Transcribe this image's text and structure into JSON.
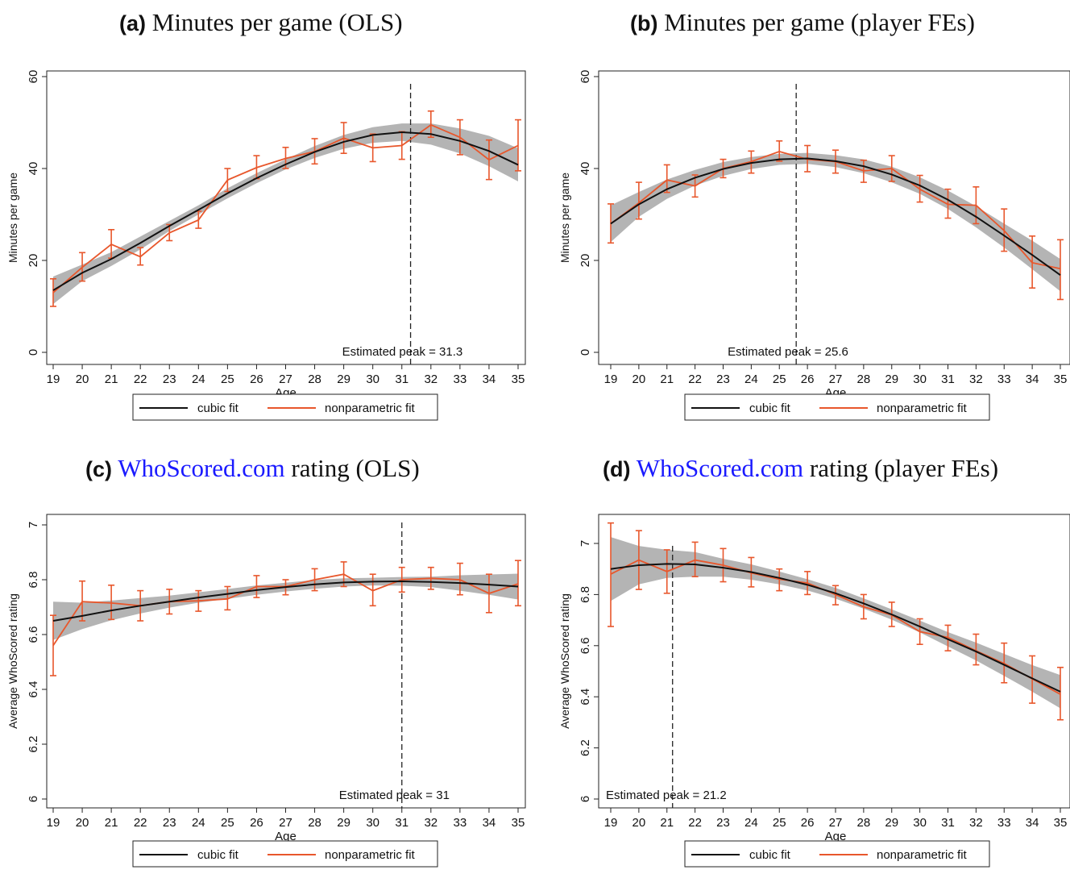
{
  "chart_data": [
    {
      "type": "line",
      "panel_letter": "(a)",
      "title_rest": "Minutes per game (OLS)",
      "title_link": "",
      "xlabel": "Age",
      "ylabel": "Minutes per game",
      "x": [
        19,
        20,
        21,
        22,
        23,
        24,
        25,
        26,
        27,
        28,
        29,
        30,
        31,
        32,
        33,
        34,
        35
      ],
      "xlim": [
        19,
        35
      ],
      "ylim": [
        0,
        60
      ],
      "yticks": [
        0,
        20,
        40,
        60
      ],
      "peak": 31.3,
      "peak_label": "Estimated peak = 31.3",
      "series": [
        {
          "name": "cubic fit",
          "values": [
            13.5,
            17.3,
            20.3,
            23.8,
            27.5,
            31,
            34.6,
            37.9,
            40.9,
            43.6,
            45.8,
            47.3,
            47.9,
            47.5,
            46,
            43.8,
            40.8
          ],
          "band_lower": [
            10.5,
            15.5,
            18.8,
            22.4,
            26.4,
            30,
            33.5,
            36.8,
            39.8,
            42.3,
            44.3,
            45.6,
            46,
            45.2,
            43.3,
            40.5,
            37.2
          ],
          "band_upper": [
            16.5,
            19.1,
            21.8,
            25.2,
            28.6,
            32,
            35.7,
            39,
            42,
            44.9,
            47.3,
            49,
            49.8,
            49.8,
            48.7,
            47.1,
            44.4
          ]
        },
        {
          "name": "nonparametric fit",
          "values": [
            13,
            18.5,
            23.5,
            20.8,
            26,
            28.8,
            37.5,
            40.2,
            42.2,
            43.7,
            46.6,
            44.5,
            45,
            49.5,
            46.8,
            41.9,
            45
          ],
          "ci_lower": [
            10,
            15.5,
            20.5,
            19,
            24.3,
            27,
            35,
            37.8,
            40,
            41,
            43.3,
            41.5,
            42,
            46.8,
            43,
            37.6,
            39.5
          ],
          "ci_upper": [
            16,
            21.7,
            26.7,
            22.8,
            27.8,
            30.7,
            40,
            42.8,
            44.6,
            46.5,
            50,
            47.5,
            48,
            52.5,
            50.6,
            46.2,
            50.6
          ]
        }
      ],
      "legend": [
        "cubic fit",
        "nonparametric fit"
      ]
    },
    {
      "type": "line",
      "panel_letter": "(b)",
      "title_rest": "Minutes per game (player FEs)",
      "title_link": "",
      "xlabel": "Age",
      "ylabel": "Minutes per game",
      "x": [
        19,
        20,
        21,
        22,
        23,
        24,
        25,
        26,
        27,
        28,
        29,
        30,
        31,
        32,
        33,
        34,
        35
      ],
      "xlim": [
        19,
        35
      ],
      "ylim": [
        0,
        60
      ],
      "yticks": [
        0,
        20,
        40,
        60
      ],
      "peak": 25.6,
      "peak_label": "Estimated peak = 25.6",
      "series": [
        {
          "name": "cubic fit",
          "values": [
            28,
            32.2,
            35.5,
            38,
            39.9,
            41.2,
            42,
            42.2,
            41.6,
            40.5,
            38.7,
            36.3,
            33.2,
            29.5,
            25.4,
            21.2,
            16.8
          ],
          "band_lower": [
            24,
            29.5,
            33.4,
            36.3,
            38.4,
            39.9,
            40.8,
            41,
            40.3,
            39,
            37,
            34.5,
            31.2,
            27.2,
            22.8,
            18.1,
            13.3
          ],
          "band_upper": [
            32,
            34.9,
            37.6,
            39.7,
            41.4,
            42.5,
            43.2,
            43.4,
            42.9,
            42,
            40.4,
            38.1,
            35.2,
            31.8,
            28,
            24.3,
            20.3
          ]
        },
        {
          "name": "nonparametric fit",
          "values": [
            28,
            32.5,
            37.5,
            36.2,
            40,
            41.5,
            43.7,
            42,
            41.5,
            39.5,
            40,
            35.5,
            32.2,
            32,
            26.5,
            19.5,
            18.2
          ],
          "ci_lower": [
            23.8,
            29,
            34.8,
            33.8,
            38,
            39,
            41.6,
            39.3,
            39,
            37,
            37.2,
            32.7,
            29.2,
            28,
            22,
            14,
            11.5
          ],
          "ci_upper": [
            32.3,
            37,
            40.8,
            38.6,
            42,
            43.8,
            46,
            45,
            44,
            41.8,
            42.8,
            38.5,
            35.5,
            36,
            31.2,
            25.3,
            24.5
          ]
        }
      ],
      "legend": [
        "cubic fit",
        "nonparametric fit"
      ]
    },
    {
      "type": "line",
      "panel_letter": "(c)",
      "title_rest": "rating (OLS)",
      "title_link": "WhoScored.com",
      "xlabel": "Age",
      "ylabel": "Average WhoScored rating",
      "x": [
        19,
        20,
        21,
        22,
        23,
        24,
        25,
        26,
        27,
        28,
        29,
        30,
        31,
        32,
        33,
        34,
        35
      ],
      "xlim": [
        19,
        35
      ],
      "ylim": [
        6,
        7
      ],
      "yticks": [
        6,
        6.2,
        6.4,
        6.6,
        6.8,
        7
      ],
      "peak": 31,
      "peak_label": "Estimated peak = 31",
      "series": [
        {
          "name": "cubic fit",
          "values": [
            6.65,
            6.668,
            6.688,
            6.705,
            6.72,
            6.735,
            6.748,
            6.762,
            6.773,
            6.783,
            6.79,
            6.793,
            6.794,
            6.792,
            6.788,
            6.782,
            6.775
          ],
          "band_lower": [
            6.58,
            6.62,
            6.652,
            6.677,
            6.698,
            6.716,
            6.73,
            6.745,
            6.757,
            6.767,
            6.775,
            6.779,
            6.778,
            6.773,
            6.76,
            6.745,
            6.728
          ],
          "band_upper": [
            6.72,
            6.716,
            6.724,
            6.733,
            6.742,
            6.754,
            6.766,
            6.779,
            6.789,
            6.799,
            6.805,
            6.807,
            6.81,
            6.811,
            6.816,
            6.819,
            6.822
          ]
        },
        {
          "name": "nonparametric fit",
          "values": [
            6.56,
            6.72,
            6.715,
            6.705,
            6.72,
            6.723,
            6.73,
            6.775,
            6.775,
            6.8,
            6.82,
            6.76,
            6.8,
            6.805,
            6.8,
            6.75,
            6.785
          ],
          "ci_lower": [
            6.45,
            6.65,
            6.655,
            6.65,
            6.675,
            6.685,
            6.69,
            6.735,
            6.745,
            6.76,
            6.775,
            6.705,
            6.755,
            6.765,
            6.745,
            6.68,
            6.705
          ],
          "ci_upper": [
            6.67,
            6.795,
            6.78,
            6.76,
            6.765,
            6.76,
            6.775,
            6.815,
            6.8,
            6.84,
            6.865,
            6.82,
            6.845,
            6.845,
            6.86,
            6.82,
            6.87
          ]
        }
      ],
      "legend": [
        "cubic fit",
        "nonparametric fit"
      ]
    },
    {
      "type": "line",
      "panel_letter": "(d)",
      "title_rest": "rating (player FEs)",
      "title_link": "WhoScored.com",
      "xlabel": "Age",
      "ylabel": "Average WhoScored rating",
      "x": [
        19,
        20,
        21,
        22,
        23,
        24,
        25,
        26,
        27,
        28,
        29,
        30,
        31,
        32,
        33,
        34,
        35
      ],
      "xlim": [
        19,
        35
      ],
      "ylim": [
        6,
        7
      ],
      "yticks": [
        6,
        6.2,
        6.4,
        6.6,
        6.8,
        7
      ],
      "peak": 21.2,
      "peak_label": "Estimated peak = 21.2",
      "series": [
        {
          "name": "cubic fit",
          "values": [
            6.9,
            6.915,
            6.92,
            6.918,
            6.905,
            6.888,
            6.865,
            6.838,
            6.805,
            6.765,
            6.722,
            6.675,
            6.625,
            6.577,
            6.525,
            6.472,
            6.42
          ],
          "band_lower": [
            6.775,
            6.84,
            6.865,
            6.87,
            6.87,
            6.858,
            6.84,
            6.816,
            6.784,
            6.745,
            6.702,
            6.652,
            6.597,
            6.542,
            6.482,
            6.42,
            6.355
          ],
          "band_upper": [
            7.025,
            6.99,
            6.975,
            6.966,
            6.94,
            6.918,
            6.89,
            6.86,
            6.826,
            6.785,
            6.742,
            6.698,
            6.653,
            6.612,
            6.568,
            6.524,
            6.485
          ]
        },
        {
          "name": "nonparametric fit",
          "values": [
            6.88,
            6.935,
            6.89,
            6.935,
            6.915,
            6.885,
            6.86,
            6.845,
            6.8,
            6.752,
            6.72,
            6.655,
            6.632,
            6.58,
            6.53,
            6.47,
            6.41
          ],
          "ci_lower": [
            6.675,
            6.82,
            6.805,
            6.87,
            6.85,
            6.83,
            6.815,
            6.8,
            6.76,
            6.705,
            6.675,
            6.605,
            6.58,
            6.525,
            6.455,
            6.375,
            6.31
          ],
          "ci_upper": [
            7.08,
            7.05,
            6.975,
            7.005,
            6.98,
            6.945,
            6.9,
            6.89,
            6.835,
            6.8,
            6.77,
            6.705,
            6.68,
            6.645,
            6.61,
            6.56,
            6.515
          ]
        }
      ],
      "legend": [
        "cubic fit",
        "nonparametric fit"
      ]
    }
  ]
}
